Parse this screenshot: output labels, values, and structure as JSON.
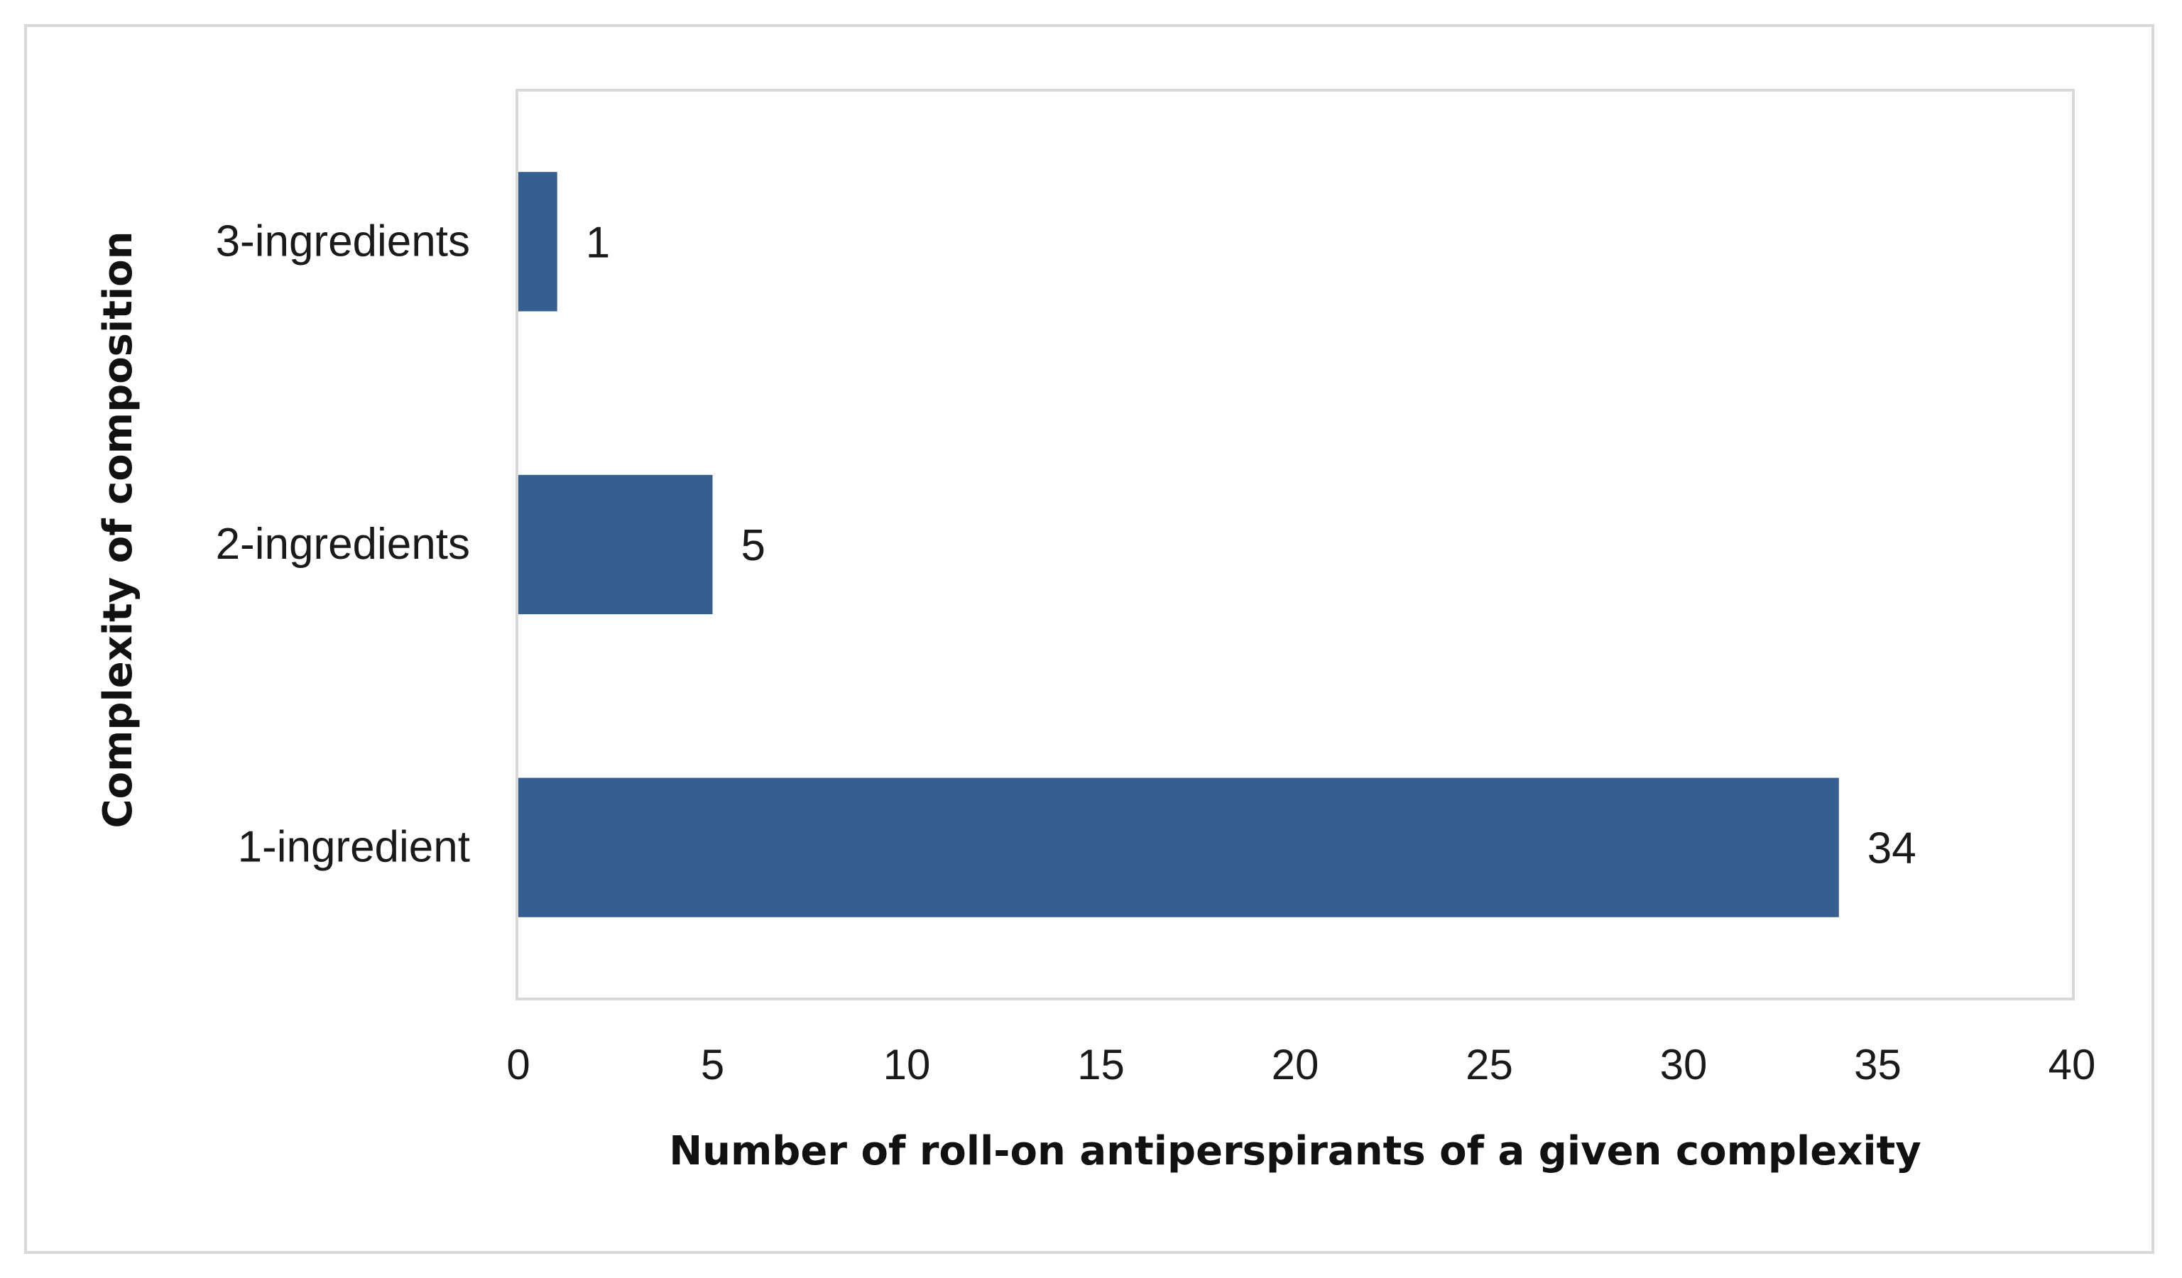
{
  "chart_data": {
    "type": "bar",
    "orientation": "horizontal",
    "categories": [
      "3-ingredients",
      "2-ingredients",
      "1-ingredient"
    ],
    "values": [
      1,
      5,
      34
    ],
    "data_labels": [
      "1",
      "5",
      "34"
    ],
    "xlabel": "Number of roll-on antiperspirants of a given complexity",
    "ylabel": "Complexity of composition",
    "xlim": [
      0,
      40
    ],
    "xticks": [
      0,
      5,
      10,
      15,
      20,
      25,
      30,
      35,
      40
    ],
    "grid": false,
    "legend": "none",
    "bar_color": "#365F91",
    "plot_border_color": "#d9d9d9"
  }
}
